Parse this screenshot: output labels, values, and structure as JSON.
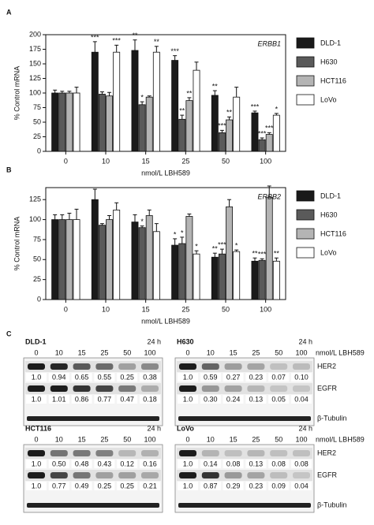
{
  "panel_labels": [
    "A",
    "B",
    "C"
  ],
  "chart_data": [
    {
      "type": "bar",
      "title": "ERBB1",
      "x_label": "nmol/L LBH589",
      "y_label": "% Control mRNA",
      "categories": [
        "0",
        "10",
        "15",
        "25",
        "50",
        "100"
      ],
      "ylim": [
        0,
        200
      ],
      "yticks": [
        0,
        25,
        50,
        75,
        100,
        125,
        150,
        175,
        200
      ],
      "legend": "right",
      "series": [
        {
          "name": "DLD-1",
          "color": "#1a1a1a",
          "values": [
            100,
            170,
            173,
            156,
            96,
            66
          ],
          "errors": [
            5,
            18,
            18,
            8,
            8,
            3
          ],
          "significance": [
            null,
            "***",
            "**",
            "***",
            "**",
            "***"
          ]
        },
        {
          "name": "H630",
          "color": "#5a5a5a",
          "values": [
            100,
            98,
            80,
            55,
            32,
            20
          ],
          "errors": [
            3,
            4,
            5,
            7,
            4,
            3
          ],
          "significance": [
            null,
            null,
            "*",
            "**",
            "***",
            "***"
          ]
        },
        {
          "name": "HCT116",
          "color": "#b4b4b4",
          "values": [
            100,
            95,
            93,
            87,
            54,
            29
          ],
          "errors": [
            3,
            6,
            2,
            5,
            5,
            3
          ],
          "significance": [
            null,
            null,
            null,
            "**",
            "**",
            "***"
          ]
        },
        {
          "name": "LoVo",
          "color": "#ffffff",
          "values": [
            100,
            170,
            170,
            139,
            93,
            62
          ],
          "errors": [
            10,
            12,
            10,
            14,
            17,
            3
          ],
          "significance": [
            null,
            "***",
            "**",
            null,
            null,
            "*"
          ]
        }
      ]
    },
    {
      "type": "bar",
      "title": "ERBB2",
      "x_label": "nmol/L LBH589",
      "y_label": "% Control mRNA",
      "categories": [
        "0",
        "10",
        "15",
        "25",
        "50",
        "100"
      ],
      "ylim": [
        0,
        140
      ],
      "yticks": [
        0,
        25,
        50,
        75,
        100,
        125
      ],
      "legend": "right",
      "series": [
        {
          "name": "DLD-1",
          "color": "#1a1a1a",
          "values": [
            100,
            125,
            97,
            68,
            53,
            48
          ],
          "errors": [
            6,
            13,
            9,
            8,
            5,
            4
          ],
          "significance": [
            null,
            null,
            null,
            "*",
            "**",
            "**"
          ]
        },
        {
          "name": "H630",
          "color": "#5a5a5a",
          "values": [
            100,
            93,
            90,
            70,
            57,
            49
          ],
          "errors": [
            6,
            2,
            2,
            8,
            6,
            2
          ],
          "significance": [
            null,
            null,
            "*",
            "*",
            "***",
            "***"
          ]
        },
        {
          "name": "HCT116",
          "color": "#b4b4b4",
          "values": [
            100,
            100,
            105,
            104,
            116,
            128
          ],
          "errors": [
            8,
            5,
            7,
            3,
            9,
            14
          ],
          "significance": [
            null,
            null,
            null,
            null,
            null,
            null
          ]
        },
        {
          "name": "LoVo",
          "color": "#ffffff",
          "values": [
            100,
            112,
            85,
            57,
            60,
            48
          ],
          "errors": [
            13,
            9,
            10,
            4,
            2,
            4
          ],
          "significance": [
            null,
            null,
            null,
            "*",
            "*",
            "**"
          ]
        }
      ]
    }
  ],
  "blots": [
    {
      "name": "DLD-1",
      "time": "24 h",
      "concentrations": [
        "0",
        "10",
        "15",
        "25",
        "50",
        "100"
      ],
      "proteins": [
        {
          "values": [
            "1.0",
            "0.94",
            "0.65",
            "0.55",
            "0.25",
            "0.38"
          ]
        },
        {
          "values": [
            "1.0",
            "1.01",
            "0.86",
            "0.77",
            "0.47",
            "0.18"
          ]
        }
      ]
    },
    {
      "name": "H630",
      "time": "24 h",
      "concentrations": [
        "0",
        "10",
        "15",
        "25",
        "50",
        "100"
      ],
      "dose_label": "nmol/L LBH589",
      "proteins": [
        {
          "name": "HER2",
          "values": [
            "1.0",
            "0.59",
            "0.27",
            "0.23",
            "0.07",
            "0.10"
          ]
        },
        {
          "name": "EGFR",
          "values": [
            "1.0",
            "0.30",
            "0.24",
            "0.13",
            "0.05",
            "0.04"
          ]
        }
      ],
      "loading": "β-Tubulin"
    },
    {
      "name": "HCT116",
      "time": "24 h",
      "concentrations": [
        "0",
        "10",
        "15",
        "25",
        "50",
        "100"
      ],
      "proteins": [
        {
          "values": [
            "1.0",
            "0.50",
            "0.48",
            "0.43",
            "0.12",
            "0.16"
          ]
        },
        {
          "values": [
            "1.0",
            "0.77",
            "0.49",
            "0.25",
            "0.25",
            "0.21"
          ]
        }
      ]
    },
    {
      "name": "LoVo",
      "time": "24 h",
      "concentrations": [
        "0",
        "10",
        "15",
        "25",
        "50",
        "100"
      ],
      "dose_label": "nmol/L LBH589",
      "proteins": [
        {
          "name": "HER2",
          "values": [
            "1.0",
            "0.14",
            "0.08",
            "0.13",
            "0.08",
            "0.08"
          ]
        },
        {
          "name": "EGFR",
          "values": [
            "1.0",
            "0.87",
            "0.29",
            "0.23",
            "0.09",
            "0.04"
          ]
        }
      ],
      "loading": "β-Tubulin"
    }
  ]
}
